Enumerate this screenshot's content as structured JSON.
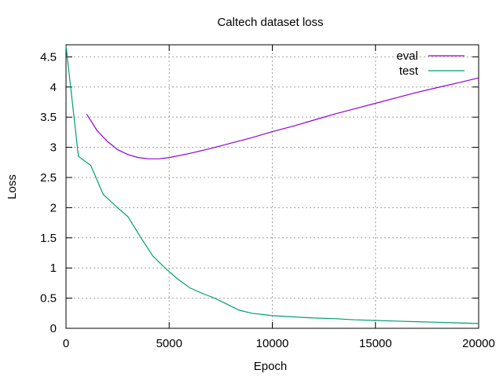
{
  "chart_data": {
    "type": "line",
    "title": "Caltech dataset loss",
    "xlabel": "Epoch",
    "ylabel": "Loss",
    "xlim": [
      0,
      20000
    ],
    "ylim": [
      0,
      4.7
    ],
    "x_ticks": [
      0,
      5000,
      10000,
      15000,
      20000
    ],
    "y_ticks": [
      0,
      0.5,
      1,
      1.5,
      2,
      2.5,
      3,
      3.5,
      4,
      4.5
    ],
    "x_tick_labels": [
      "0",
      "5000",
      "10000",
      "15000",
      "20000"
    ],
    "y_tick_labels": [
      "0",
      "0.5",
      "1",
      "1.5",
      "2",
      "2.5",
      "3",
      "3.5",
      "4",
      "4.5"
    ],
    "grid": true,
    "legend_position": "top-right",
    "series": [
      {
        "name": "eval",
        "color": "#9400d3",
        "x": [
          1000,
          1500,
          2000,
          2500,
          3000,
          3500,
          4000,
          4500,
          5000,
          6000,
          7000,
          8000,
          9000,
          10000,
          11000,
          12000,
          13000,
          14000,
          15000,
          16000,
          17000,
          18000,
          19000,
          20000
        ],
        "y": [
          3.55,
          3.28,
          3.1,
          2.96,
          2.88,
          2.83,
          2.81,
          2.81,
          2.83,
          2.9,
          2.98,
          3.07,
          3.16,
          3.26,
          3.35,
          3.45,
          3.55,
          3.64,
          3.73,
          3.82,
          3.91,
          3.99,
          4.07,
          4.15
        ]
      },
      {
        "name": "test",
        "color": "#009e73",
        "x": [
          0,
          600,
          1200,
          1800,
          2400,
          3000,
          3600,
          4200,
          4800,
          5400,
          6000,
          6600,
          7200,
          7800,
          8400,
          9000,
          10000,
          11000,
          12000,
          13000,
          14000,
          15000,
          16000,
          17000,
          18000,
          19000,
          20000
        ],
        "y": [
          4.68,
          2.85,
          2.7,
          2.22,
          2.03,
          1.85,
          1.52,
          1.2,
          1.0,
          0.82,
          0.67,
          0.58,
          0.5,
          0.4,
          0.3,
          0.25,
          0.21,
          0.19,
          0.17,
          0.16,
          0.14,
          0.13,
          0.12,
          0.11,
          0.1,
          0.09,
          0.08
        ]
      }
    ]
  }
}
